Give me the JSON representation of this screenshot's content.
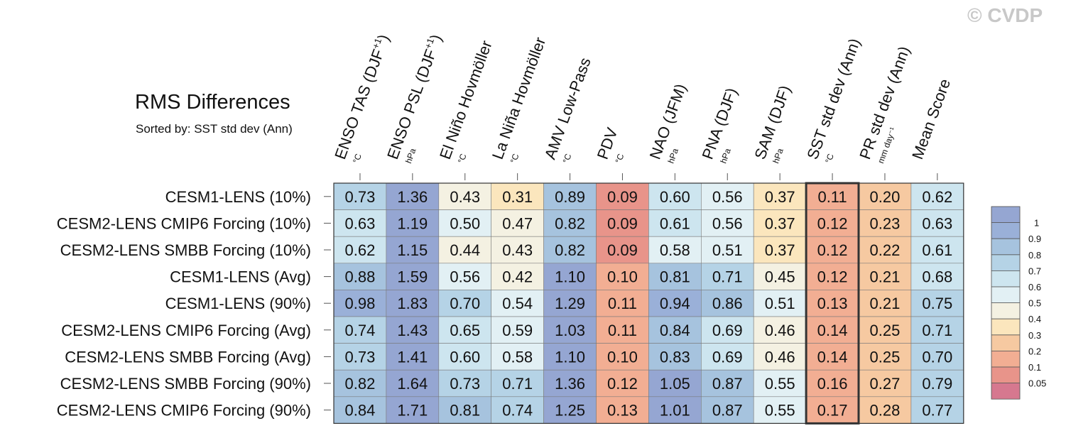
{
  "watermark": "© CVDP",
  "title": "RMS Differences",
  "subtitle": "Sorted by: SST std dev (Ann)",
  "chart_data": {
    "type": "heatmap",
    "title": "RMS Differences",
    "subtitle": "Sorted by: SST std dev (Ann)",
    "columns": [
      {
        "name": "ENSO TAS (DJF",
        "sup": "+1",
        "close": ")",
        "unit": "°C"
      },
      {
        "name": "ENSO PSL (DJF",
        "sup": "+1",
        "close": ")",
        "unit": "hPa"
      },
      {
        "name": "El Niño Hovmöller",
        "sup": "",
        "close": "",
        "unit": "°C"
      },
      {
        "name": "La Niña Hovmöller",
        "sup": "",
        "close": "",
        "unit": "°C"
      },
      {
        "name": "AMV Low-Pass",
        "sup": "",
        "close": "",
        "unit": "°C"
      },
      {
        "name": "PDV",
        "sup": "",
        "close": "",
        "unit": "°C"
      },
      {
        "name": "NAO (JFM)",
        "sup": "",
        "close": "",
        "unit": "hPa"
      },
      {
        "name": "PNA (DJF)",
        "sup": "",
        "close": "",
        "unit": "hPa"
      },
      {
        "name": "SAM (DJF)",
        "sup": "",
        "close": "",
        "unit": "hPa"
      },
      {
        "name": "SST std dev (Ann)",
        "sup": "",
        "close": "",
        "unit": "°C"
      },
      {
        "name": "PR std dev (Ann)",
        "sup": "",
        "close": "",
        "unit": "mm day⁻¹"
      },
      {
        "name": "Mean Score",
        "sup": "",
        "close": "",
        "unit": ""
      }
    ],
    "rows": [
      "CESM1-LENS (10%)",
      "CESM2-LENS CMIP6 Forcing (10%)",
      "CESM2-LENS SMBB Forcing (10%)",
      "CESM1-LENS (Avg)",
      "CESM1-LENS (90%)",
      "CESM2-LENS CMIP6 Forcing (Avg)",
      "CESM2-LENS SMBB Forcing (Avg)",
      "CESM2-LENS SMBB Forcing (90%)",
      "CESM2-LENS CMIP6 Forcing (90%)"
    ],
    "values": [
      [
        0.73,
        1.36,
        0.43,
        0.31,
        0.89,
        0.09,
        0.6,
        0.56,
        0.37,
        0.11,
        0.2,
        0.62
      ],
      [
        0.63,
        1.19,
        0.5,
        0.47,
        0.82,
        0.09,
        0.61,
        0.56,
        0.37,
        0.12,
        0.23,
        0.63
      ],
      [
        0.62,
        1.15,
        0.44,
        0.43,
        0.82,
        0.09,
        0.58,
        0.51,
        0.37,
        0.12,
        0.22,
        0.61
      ],
      [
        0.88,
        1.59,
        0.56,
        0.42,
        1.1,
        0.1,
        0.81,
        0.71,
        0.45,
        0.12,
        0.21,
        0.68
      ],
      [
        0.98,
        1.83,
        0.7,
        0.54,
        1.29,
        0.11,
        0.94,
        0.86,
        0.51,
        0.13,
        0.21,
        0.75
      ],
      [
        0.74,
        1.43,
        0.65,
        0.59,
        1.03,
        0.11,
        0.84,
        0.69,
        0.46,
        0.14,
        0.25,
        0.71
      ],
      [
        0.73,
        1.41,
        0.6,
        0.58,
        1.1,
        0.1,
        0.83,
        0.69,
        0.46,
        0.14,
        0.25,
        0.7
      ],
      [
        0.82,
        1.64,
        0.73,
        0.71,
        1.36,
        0.12,
        1.05,
        0.87,
        0.55,
        0.16,
        0.27,
        0.79
      ],
      [
        0.84,
        1.71,
        0.81,
        0.74,
        1.25,
        0.13,
        1.01,
        0.87,
        0.55,
        0.17,
        0.28,
        0.77
      ]
    ],
    "highlighted_column": "SST std dev (Ann)",
    "legend": {
      "ticks": [
        "1",
        "0.9",
        "0.8",
        "0.7",
        "0.6",
        "0.5",
        "0.4",
        "0.3",
        "0.2",
        "0.1",
        "0.05"
      ],
      "thresholds": [
        0.05,
        0.1,
        0.2,
        0.3,
        0.4,
        0.5,
        0.6,
        0.7,
        0.8,
        0.9,
        1
      ],
      "colors": [
        "#d6788f",
        "#e8948a",
        "#f2ae93",
        "#f6c9a1",
        "#fbe6bd",
        "#f4f1e2",
        "#e2f0f4",
        "#cde5ef",
        "#b5d3e6",
        "#a6c3de",
        "#9ab0d8",
        "#95a6d2"
      ],
      "placement": "right"
    }
  }
}
